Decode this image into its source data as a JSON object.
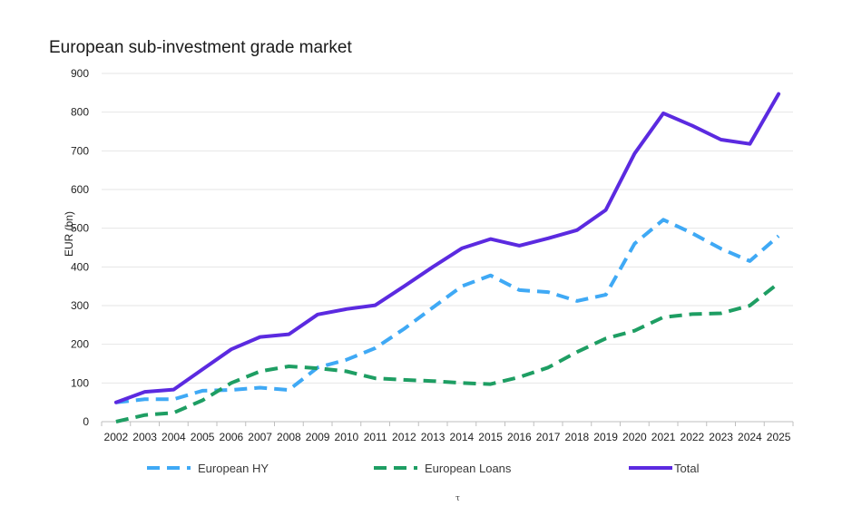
{
  "chart_data": {
    "type": "line",
    "title": "European sub-investment grade market",
    "ylabel": "EUR (bn)",
    "xlabel": "",
    "ylim": [
      0,
      900
    ],
    "yticks": [
      0,
      100,
      200,
      300,
      400,
      500,
      600,
      700,
      800,
      900
    ],
    "grid": true,
    "legend_position": "bottom",
    "categories": [
      "2002",
      "2003",
      "2004",
      "2005",
      "2006",
      "2007",
      "2008",
      "2009",
      "2010",
      "2011",
      "2012",
      "2013",
      "2014",
      "2015",
      "2016",
      "2017",
      "2018",
      "2019",
      "2020",
      "2021",
      "2022",
      "2023",
      "2024",
      "2025"
    ],
    "series": [
      {
        "name": "European HY",
        "style": "dashed",
        "color": "#3fa9f5",
        "values": [
          50,
          58,
          58,
          80,
          82,
          88,
          82,
          140,
          160,
          190,
          240,
          295,
          350,
          378,
          340,
          335,
          312,
          328,
          460,
          522,
          487,
          447,
          415,
          480
        ]
      },
      {
        "name": "European Loans",
        "style": "dashed",
        "color": "#1e9e63",
        "values": [
          0,
          17,
          23,
          55,
          100,
          130,
          143,
          138,
          130,
          112,
          108,
          105,
          100,
          97,
          115,
          140,
          180,
          215,
          235,
          270,
          278,
          280,
          300,
          358
        ]
      },
      {
        "name": "Total",
        "style": "solid",
        "color": "#5b2ae0",
        "values": [
          50,
          77,
          83,
          135,
          187,
          219,
          226,
          277,
          291,
          301,
          350,
          400,
          448,
          472,
          455,
          474,
          495,
          547,
          693,
          797,
          765,
          729,
          718,
          847
        ]
      }
    ]
  },
  "footnote": "τ"
}
